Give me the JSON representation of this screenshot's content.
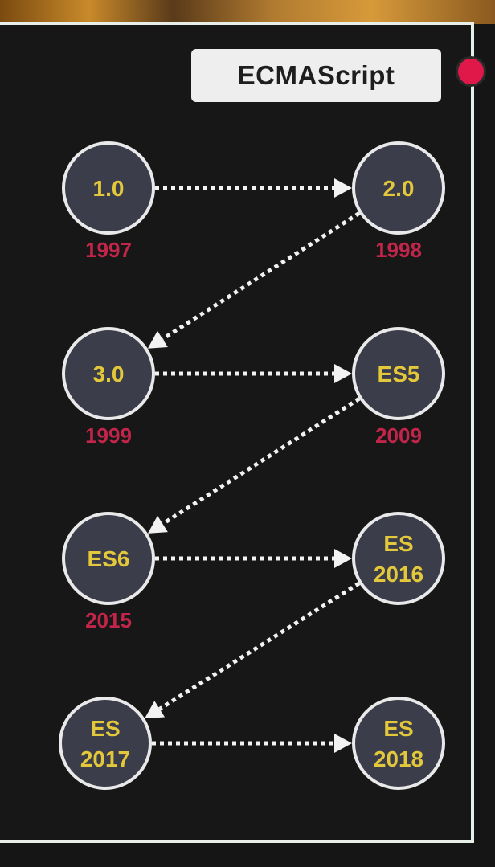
{
  "title": "ECMAScript",
  "colors": {
    "node_fill": "#3b3d4a",
    "node_text": "#e2c83a",
    "year_text": "#c2254a",
    "badge_bg": "#eeeeee",
    "accent_dot": "#e0184a"
  },
  "nodes": [
    {
      "id": "n1",
      "lines": [
        "1.0"
      ],
      "year": "1997"
    },
    {
      "id": "n2",
      "lines": [
        "2.0"
      ],
      "year": "1998"
    },
    {
      "id": "n3",
      "lines": [
        "3.0"
      ],
      "year": "1999"
    },
    {
      "id": "n4",
      "lines": [
        "ES5"
      ],
      "year": "2009"
    },
    {
      "id": "n5",
      "lines": [
        "ES6"
      ],
      "year": "2015"
    },
    {
      "id": "n6",
      "lines": [
        "ES",
        "2016"
      ],
      "year": ""
    },
    {
      "id": "n7",
      "lines": [
        "ES",
        "2017"
      ],
      "year": ""
    },
    {
      "id": "n8",
      "lines": [
        "ES",
        "2018"
      ],
      "year": ""
    }
  ],
  "edges": [
    {
      "from": "n1",
      "to": "n2"
    },
    {
      "from": "n2",
      "to": "n3"
    },
    {
      "from": "n3",
      "to": "n4"
    },
    {
      "from": "n4",
      "to": "n5"
    },
    {
      "from": "n5",
      "to": "n6"
    },
    {
      "from": "n6",
      "to": "n7"
    },
    {
      "from": "n7",
      "to": "n8"
    }
  ]
}
